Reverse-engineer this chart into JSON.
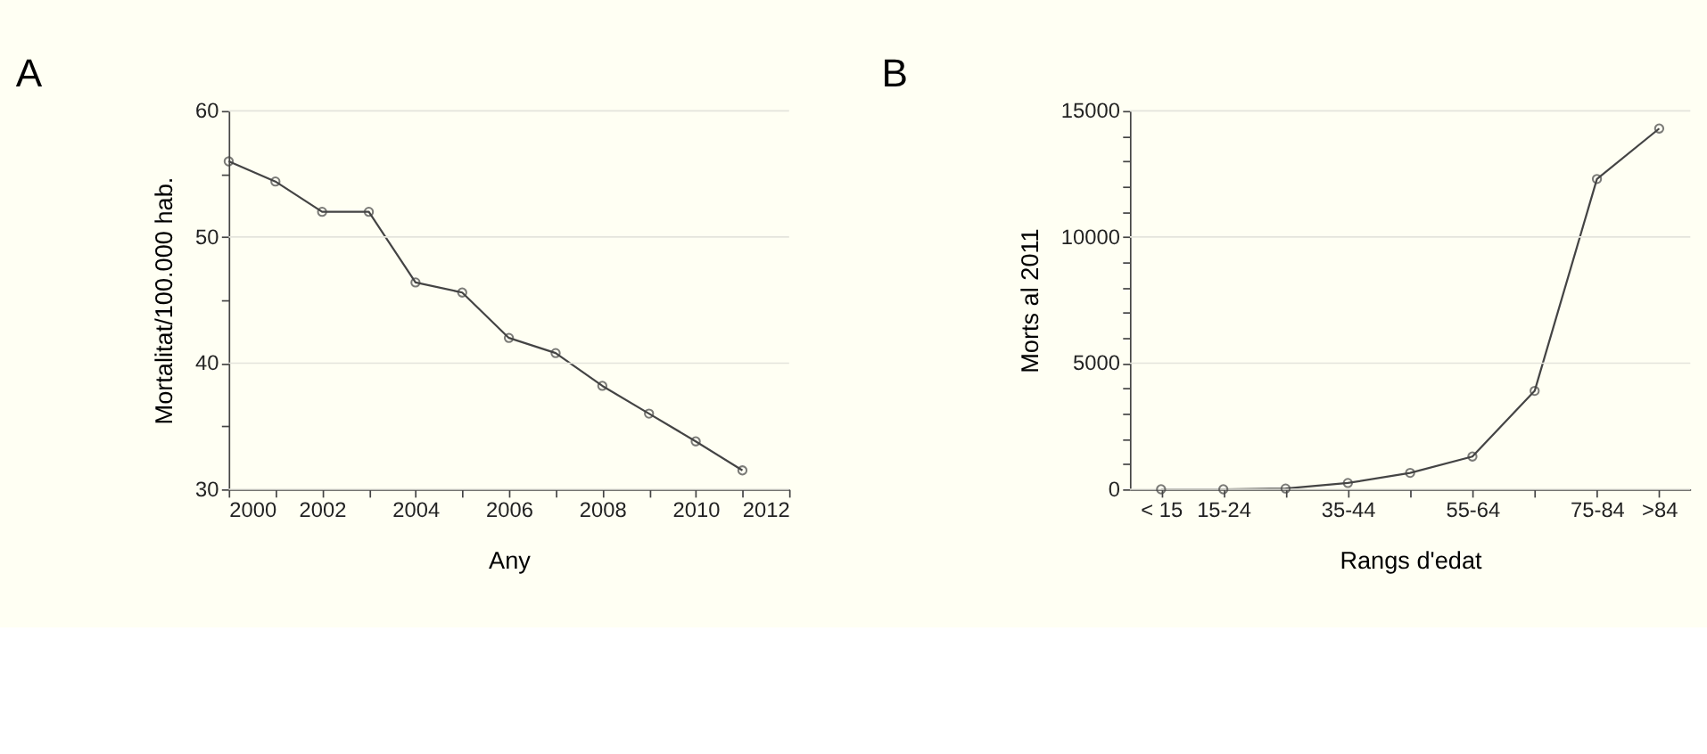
{
  "chart_data": [
    {
      "type": "line",
      "title": "A",
      "xlabel": "Any",
      "ylabel": "Mortalitat/100.000 hab.",
      "x": [
        2000,
        2001,
        2002,
        2003,
        2004,
        2005,
        2006,
        2007,
        2008,
        2009,
        2010,
        2011
      ],
      "series": [
        {
          "color": "#444444",
          "values": [
            56,
            54.4,
            52,
            52,
            46.4,
            45.6,
            42,
            40.8,
            38.2,
            36,
            33.8,
            31.5
          ]
        }
      ],
      "xlim": [
        2000,
        2012
      ],
      "xticks": [
        2000,
        {
          "value": 2001,
          "label": null
        },
        2002,
        {
          "value": 2003,
          "label": null
        },
        2004,
        {
          "value": 2005,
          "label": null
        },
        2006,
        {
          "value": 2007,
          "label": null
        },
        2008,
        {
          "value": 2009,
          "label": null
        },
        2010,
        {
          "value": 2011,
          "label": null
        },
        2012
      ],
      "ylim": [
        30,
        60
      ],
      "yticks": [
        30,
        {
          "value": 35,
          "label": null
        },
        40,
        {
          "value": 45,
          "label": null
        },
        50,
        {
          "value": 55,
          "label": null
        },
        60
      ],
      "grid": "y",
      "marker": "circle",
      "line_style": "solid",
      "legend": false
    },
    {
      "type": "line",
      "title": "B",
      "xlabel": "Rangs d'edat",
      "ylabel": "Morts al 2011",
      "categories": [
        "< 15",
        "15-24",
        null,
        "35-44",
        null,
        "55-64",
        null,
        "75-84",
        ">84"
      ],
      "series": [
        {
          "color": "#444444",
          "values": [
            0,
            0,
            30,
            250,
            650,
            1300,
            3900,
            12300,
            14300
          ]
        }
      ],
      "ylim": [
        0,
        15000
      ],
      "yticks": [
        0,
        {
          "value": 1000,
          "label": null
        },
        {
          "value": 2000,
          "label": null
        },
        {
          "value": 3000,
          "label": null
        },
        {
          "value": 4000,
          "label": null
        },
        5000,
        {
          "value": 6000,
          "label": null
        },
        {
          "value": 7000,
          "label": null
        },
        {
          "value": 8000,
          "label": null
        },
        {
          "value": 9000,
          "label": null
        },
        10000,
        {
          "value": 11000,
          "label": null
        },
        {
          "value": 12000,
          "label": null
        },
        {
          "value": 13000,
          "label": null
        },
        {
          "value": 14000,
          "label": null
        },
        15000
      ],
      "grid": "y",
      "marker": "circle",
      "line_style": "solid",
      "legend": false
    }
  ]
}
